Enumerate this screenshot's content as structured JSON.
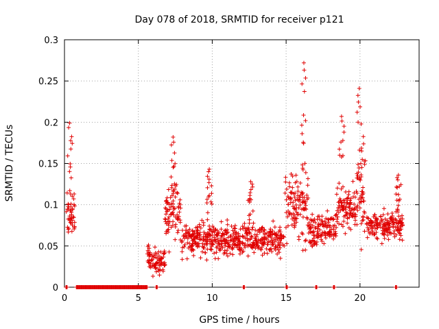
{
  "chart_data": {
    "type": "scatter",
    "title": "Day 078 of 2018, SRMTID for receiver p121",
    "xlabel": "GPS time / hours",
    "ylabel": "SRMTID / TECUs",
    "xlim": [
      0,
      24
    ],
    "ylim": [
      0,
      0.3
    ],
    "x_ticks": [
      0,
      5,
      10,
      15,
      20
    ],
    "x_tick_labels": [
      "0",
      "5",
      "10",
      "15",
      "20"
    ],
    "y_ticks": [
      0,
      0.05,
      0.1,
      0.15,
      0.2,
      0.25,
      0.3
    ],
    "y_tick_labels": [
      "0",
      "0.05",
      "0.1",
      "0.15",
      "0.2",
      "0.25",
      "0.3"
    ],
    "grid": true,
    "marker": "+",
    "series_color": "#e00000",
    "zero_segments": [
      [
        0.1,
        0.2
      ],
      [
        0.8,
        5.6
      ],
      [
        6.2,
        6.3
      ],
      [
        12.1,
        12.2
      ],
      [
        15.0,
        15.1
      ],
      [
        17.0,
        17.1
      ],
      [
        18.2,
        18.3
      ],
      [
        22.4,
        22.5
      ]
    ],
    "activity_profile": [
      {
        "start": 0.1,
        "end": 0.7,
        "mean": 0.09,
        "spread": 0.03
      },
      {
        "start": 5.6,
        "end": 6.8,
        "mean": 0.035,
        "spread": 0.02
      },
      {
        "start": 6.8,
        "end": 7.9,
        "mean": 0.085,
        "spread": 0.035
      },
      {
        "start": 7.9,
        "end": 14.9,
        "mean": 0.058,
        "spread": 0.02
      },
      {
        "start": 14.9,
        "end": 16.5,
        "mean": 0.1,
        "spread": 0.05
      },
      {
        "start": 16.5,
        "end": 18.4,
        "mean": 0.07,
        "spread": 0.02
      },
      {
        "start": 18.4,
        "end": 19.7,
        "mean": 0.095,
        "spread": 0.035
      },
      {
        "start": 19.7,
        "end": 20.4,
        "mean": 0.11,
        "spread": 0.05
      },
      {
        "start": 20.4,
        "end": 22.9,
        "mean": 0.075,
        "spread": 0.02
      }
    ],
    "peaks": [
      {
        "x": 0.35,
        "y": 0.199
      },
      {
        "x": 7.35,
        "y": 0.182
      },
      {
        "x": 9.8,
        "y": 0.143
      },
      {
        "x": 12.6,
        "y": 0.128
      },
      {
        "x": 16.2,
        "y": 0.272
      },
      {
        "x": 18.75,
        "y": 0.207
      },
      {
        "x": 19.95,
        "y": 0.241
      },
      {
        "x": 22.6,
        "y": 0.136
      }
    ]
  }
}
